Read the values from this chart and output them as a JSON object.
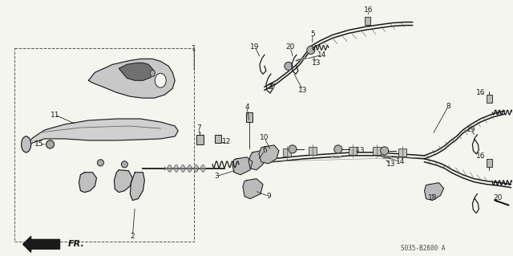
{
  "background_color": "#f5f5f0",
  "line_color": "#1a1a1a",
  "part_number": "S035-B2600 A",
  "fig_width": 6.4,
  "fig_height": 3.19,
  "dpi": 100
}
